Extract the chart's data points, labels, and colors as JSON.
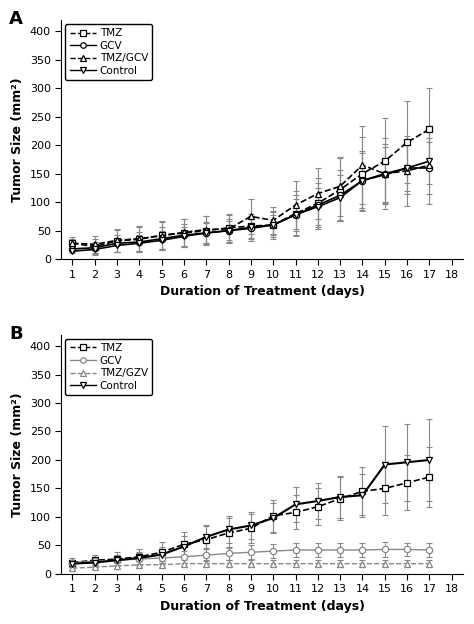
{
  "days": [
    1,
    2,
    3,
    4,
    5,
    6,
    7,
    8,
    9,
    10,
    11,
    12,
    13,
    14,
    15,
    16,
    17
  ],
  "panel_A": {
    "label": "A",
    "TMZ": {
      "y": [
        28,
        22,
        32,
        35,
        42,
        46,
        50,
        55,
        58,
        60,
        80,
        98,
        122,
        150,
        172,
        205,
        228
      ],
      "err": [
        8,
        14,
        20,
        22,
        25,
        25,
        25,
        25,
        22,
        22,
        40,
        45,
        55,
        65,
        75,
        72,
        72
      ]
    },
    "GCV": {
      "y": [
        18,
        20,
        28,
        30,
        36,
        42,
        46,
        50,
        54,
        60,
        78,
        95,
        112,
        138,
        150,
        160,
        160
      ],
      "err": [
        5,
        10,
        15,
        17,
        20,
        20,
        20,
        20,
        22,
        25,
        35,
        38,
        45,
        52,
        52,
        45,
        45
      ]
    },
    "TMZ_GCV": {
      "y": [
        28,
        26,
        33,
        36,
        41,
        47,
        52,
        53,
        75,
        68,
        95,
        115,
        128,
        165,
        150,
        155,
        165
      ],
      "err": [
        10,
        15,
        20,
        22,
        24,
        24,
        24,
        24,
        30,
        24,
        42,
        45,
        52,
        68,
        62,
        62,
        68
      ]
    },
    "Control": {
      "y": [
        14,
        17,
        24,
        28,
        33,
        40,
        46,
        50,
        56,
        60,
        78,
        92,
        108,
        138,
        148,
        160,
        172
      ],
      "err": [
        4,
        8,
        12,
        14,
        17,
        17,
        17,
        17,
        19,
        17,
        28,
        32,
        40,
        48,
        48,
        40,
        40
      ]
    }
  },
  "panel_B": {
    "label": "B",
    "TMZ": {
      "y": [
        20,
        24,
        26,
        30,
        38,
        52,
        60,
        72,
        80,
        102,
        108,
        118,
        132,
        145,
        150,
        160,
        170
      ],
      "err": [
        8,
        10,
        12,
        14,
        18,
        22,
        24,
        26,
        26,
        28,
        30,
        33,
        38,
        42,
        46,
        48,
        52
      ]
    },
    "GCV": {
      "y": [
        20,
        22,
        24,
        26,
        28,
        30,
        33,
        36,
        38,
        40,
        42,
        42,
        42,
        42,
        43,
        43,
        42
      ],
      "err": [
        5,
        7,
        8,
        10,
        10,
        10,
        10,
        12,
        12,
        12,
        13,
        13,
        13,
        13,
        13,
        12,
        12
      ]
    },
    "TMZ_GZV": {
      "y": [
        10,
        12,
        14,
        16,
        16,
        18,
        18,
        18,
        18,
        18,
        18,
        18,
        18,
        18,
        18,
        18,
        18
      ],
      "err": [
        3,
        4,
        5,
        6,
        6,
        6,
        6,
        6,
        6,
        6,
        6,
        6,
        6,
        6,
        6,
        6,
        6
      ]
    },
    "Control": {
      "y": [
        18,
        20,
        24,
        28,
        34,
        48,
        65,
        78,
        85,
        98,
        122,
        128,
        135,
        138,
        192,
        196,
        200
      ],
      "err": [
        5,
        7,
        9,
        11,
        14,
        18,
        20,
        23,
        23,
        26,
        30,
        32,
        36,
        38,
        68,
        68,
        72
      ]
    }
  },
  "ylabel": "Tumor Size (mm²)",
  "xlabel": "Duration of Treatment (days)",
  "ylim": [
    0,
    420
  ],
  "yticks": [
    0,
    50,
    100,
    150,
    200,
    250,
    300,
    350,
    400
  ],
  "xlim": [
    0.5,
    18.5
  ],
  "xticks": [
    1,
    2,
    3,
    4,
    5,
    6,
    7,
    8,
    9,
    10,
    11,
    12,
    13,
    14,
    15,
    16,
    17,
    18
  ],
  "legend_A": [
    "TMZ",
    "GCV",
    "TMZ/GCV",
    "Control"
  ],
  "legend_B": [
    "TMZ",
    "GCV",
    "TMZ/GZV",
    "Control"
  ],
  "styles_A": [
    {
      "ls": "--",
      "marker": "s",
      "color": "#000000",
      "lw": 1.2
    },
    {
      "ls": "-",
      "marker": "o",
      "color": "#000000",
      "lw": 1.2
    },
    {
      "ls": "--",
      "marker": "^",
      "color": "#000000",
      "lw": 1.2
    },
    {
      "ls": "-",
      "marker": "v",
      "color": "#000000",
      "lw": 1.2
    }
  ],
  "styles_B": [
    {
      "ls": "--",
      "marker": "s",
      "color": "#000000",
      "lw": 1.2
    },
    {
      "ls": "-",
      "marker": "o",
      "color": "#888888",
      "lw": 1.0
    },
    {
      "ls": "--",
      "marker": "^",
      "color": "#888888",
      "lw": 1.0
    },
    {
      "ls": "-",
      "marker": "v",
      "color": "#000000",
      "lw": 1.5
    }
  ]
}
